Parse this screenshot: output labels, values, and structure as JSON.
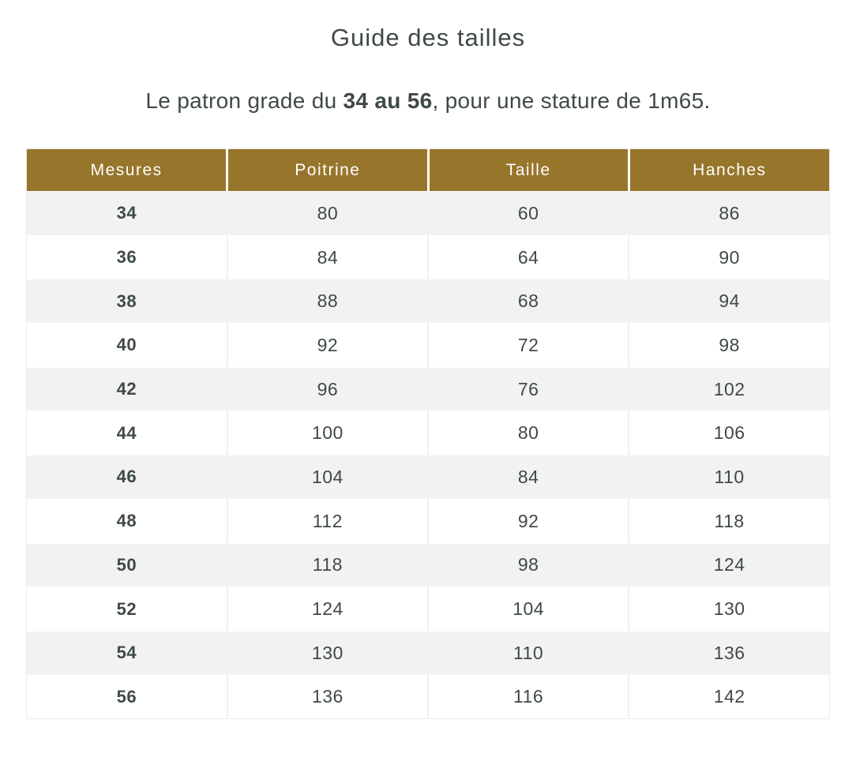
{
  "page": {
    "title": "Guide des tailles",
    "subtitle_prefix": "Le patron grade du ",
    "subtitle_bold": "34 au 56",
    "subtitle_suffix": ", pour une stature de 1m65."
  },
  "table": {
    "headers": [
      "Mesures",
      "Poitrine",
      "Taille",
      "Hanches"
    ],
    "rows": [
      [
        "34",
        "80",
        "60",
        "86"
      ],
      [
        "36",
        "84",
        "64",
        "90"
      ],
      [
        "38",
        "88",
        "68",
        "94"
      ],
      [
        "40",
        "92",
        "72",
        "98"
      ],
      [
        "42",
        "96",
        "76",
        "102"
      ],
      [
        "44",
        "100",
        "80",
        "106"
      ],
      [
        "46",
        "104",
        "84",
        "110"
      ],
      [
        "48",
        "112",
        "92",
        "118"
      ],
      [
        "50",
        "118",
        "98",
        "124"
      ],
      [
        "52",
        "124",
        "104",
        "130"
      ],
      [
        "54",
        "130",
        "110",
        "136"
      ],
      [
        "56",
        "136",
        "116",
        "142"
      ]
    ]
  },
  "colors": {
    "header_bg": "#97752b",
    "row_alt_bg": "#f1f2f1",
    "text": "#3f4a44",
    "outer_border": "#e7ebe9",
    "cell_divider": "#eef2f0"
  }
}
